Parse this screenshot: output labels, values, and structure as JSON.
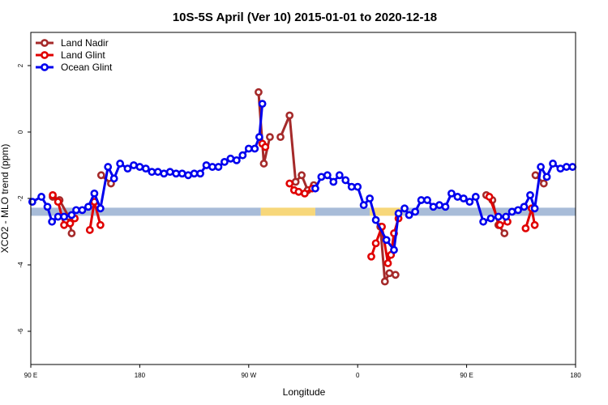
{
  "chart_data": {
    "type": "line",
    "title": "10S-5S April (Ver 10)   2015-01-01 to 2020-12-18",
    "xlabel": "Longitude",
    "ylabel": "XCO2 - MLO trend (ppm)",
    "xlim": [
      0,
      360
    ],
    "ylim": [
      -7,
      3
    ],
    "x_ticks": [
      {
        "x": 0,
        "label": "90 E"
      },
      {
        "x": 72,
        "label": "180"
      },
      {
        "x": 144,
        "label": "90 W"
      },
      {
        "x": 216,
        "label": "0"
      },
      {
        "x": 288,
        "label": "90 E"
      },
      {
        "x": 360,
        "label": "180"
      }
    ],
    "y_ticks": [
      {
        "y": 2,
        "label": "2"
      },
      {
        "y": 0,
        "label": "0"
      },
      {
        "y": -2,
        "label": "-2"
      },
      {
        "y": -4,
        "label": "-4"
      },
      {
        "y": -6,
        "label": "-6"
      }
    ],
    "legend_position": "top-left",
    "surface_band": {
      "y": -2.4,
      "segments": [
        {
          "type": "ocean",
          "x0": 0,
          "x1": 152,
          "color": "#a8bcd8"
        },
        {
          "type": "land",
          "x0": 152,
          "x1": 188,
          "color": "#f7d77a"
        },
        {
          "type": "ocean",
          "x0": 188,
          "x1": 224,
          "color": "#a8bcd8"
        },
        {
          "type": "land",
          "x0": 224,
          "x1": 246,
          "color": "#f7d77a"
        },
        {
          "type": "ocean",
          "x0": 246,
          "x1": 360,
          "color": "#a8bcd8"
        }
      ]
    },
    "series": [
      {
        "name": "Land Nadir",
        "color": "#a52a2a",
        "segments": [
          [
            [
              14.5,
              -1.95
            ],
            [
              19,
              -2.05
            ],
            [
              25,
              -2.55
            ],
            [
              27,
              -3.05
            ]
          ],
          [
            [
              46.5,
              -1.3
            ],
            [
              53,
              -1.55
            ]
          ],
          [
            [
              150.5,
              1.2
            ],
            [
              154,
              -0.95
            ],
            [
              158,
              -0.15
            ]
          ],
          [
            [
              165,
              -0.15
            ],
            [
              171,
              0.5
            ],
            [
              175,
              -1.5
            ],
            [
              179,
              -1.3
            ],
            [
              183,
              -1.75
            ],
            [
              187,
              -1.6
            ]
          ],
          [
            [
              231,
              -2.85
            ],
            [
              234,
              -4.5
            ],
            [
              237,
              -4.25
            ],
            [
              241,
              -4.3
            ]
          ],
          [
            [
              301,
              -1.9
            ],
            [
              305,
              -2.05
            ],
            [
              309,
              -2.8
            ],
            [
              313,
              -3.05
            ]
          ],
          [
            [
              333.5,
              -1.3
            ],
            [
              339,
              -1.55
            ]
          ]
        ]
      },
      {
        "name": "Land Glint",
        "color": "#e00000",
        "segments": [
          [
            [
              14.5,
              -1.9
            ],
            [
              18,
              -2.1
            ],
            [
              22,
              -2.8
            ],
            [
              26,
              -2.75
            ],
            [
              29,
              -2.6
            ]
          ],
          [
            [
              39,
              -2.95
            ],
            [
              42,
              -2.1
            ],
            [
              46,
              -2.8
            ]
          ],
          [
            [
              153,
              -0.35
            ],
            [
              155,
              -0.45
            ]
          ],
          [
            [
              171,
              -1.55
            ],
            [
              174,
              -1.75
            ],
            [
              177,
              -1.8
            ],
            [
              181,
              -1.85
            ],
            [
              186,
              -1.7
            ]
          ],
          [
            [
              225,
              -3.75
            ],
            [
              228,
              -3.35
            ],
            [
              232,
              -2.85
            ],
            [
              236,
              -3.95
            ],
            [
              238,
              -3.7
            ],
            [
              240,
              -3.05
            ],
            [
              243,
              -2.6
            ]
          ],
          [
            [
              303,
              -1.95
            ],
            [
              310,
              -2.8
            ],
            [
              315,
              -2.7
            ]
          ],
          [
            [
              327,
              -2.9
            ],
            [
              331,
              -2.3
            ],
            [
              333,
              -2.8
            ]
          ]
        ]
      },
      {
        "name": "Ocean Glint",
        "color": "#0000ee",
        "segments": [
          [
            [
              1,
              -2.1
            ],
            [
              7,
              -1.95
            ],
            [
              11,
              -2.25
            ],
            [
              14,
              -2.7
            ],
            [
              18,
              -2.55
            ],
            [
              22,
              -2.55
            ],
            [
              27,
              -2.5
            ],
            [
              30,
              -2.35
            ],
            [
              34,
              -2.35
            ],
            [
              38,
              -2.25
            ],
            [
              42,
              -1.85
            ],
            [
              46,
              -2.3
            ],
            [
              51,
              -1.05
            ],
            [
              55,
              -1.4
            ],
            [
              59,
              -0.95
            ],
            [
              64,
              -1.1
            ],
            [
              68,
              -1.0
            ],
            [
              72,
              -1.05
            ],
            [
              76,
              -1.1
            ],
            [
              80,
              -1.2
            ],
            [
              84,
              -1.2
            ],
            [
              88,
              -1.25
            ],
            [
              92,
              -1.2
            ],
            [
              96,
              -1.25
            ],
            [
              100,
              -1.25
            ],
            [
              104,
              -1.3
            ],
            [
              108,
              -1.25
            ],
            [
              112,
              -1.25
            ],
            [
              116,
              -1.0
            ],
            [
              120,
              -1.05
            ],
            [
              124,
              -1.05
            ],
            [
              128,
              -0.9
            ],
            [
              132,
              -0.8
            ],
            [
              136,
              -0.85
            ],
            [
              140,
              -0.7
            ],
            [
              144,
              -0.5
            ],
            [
              148,
              -0.5
            ],
            [
              151,
              -0.15
            ],
            [
              153,
              0.85
            ]
          ],
          [
            [
              188,
              -1.7
            ],
            [
              192,
              -1.35
            ],
            [
              196,
              -1.3
            ],
            [
              200,
              -1.5
            ],
            [
              204,
              -1.3
            ],
            [
              208,
              -1.45
            ],
            [
              212,
              -1.65
            ],
            [
              216,
              -1.65
            ],
            [
              220,
              -2.2
            ],
            [
              224,
              -2.0
            ],
            [
              228,
              -2.65
            ],
            [
              235,
              -3.25
            ],
            [
              240,
              -3.55
            ],
            [
              243,
              -2.45
            ],
            [
              247,
              -2.3
            ],
            [
              250,
              -2.5
            ],
            [
              254,
              -2.4
            ],
            [
              258,
              -2.05
            ],
            [
              262,
              -2.05
            ],
            [
              266,
              -2.25
            ],
            [
              270,
              -2.2
            ],
            [
              274,
              -2.25
            ],
            [
              278,
              -1.85
            ],
            [
              282,
              -1.95
            ],
            [
              286,
              -2.0
            ],
            [
              290,
              -2.1
            ],
            [
              294,
              -1.95
            ],
            [
              299,
              -2.7
            ],
            [
              304,
              -2.6
            ],
            [
              309,
              -2.55
            ],
            [
              314,
              -2.55
            ],
            [
              318,
              -2.4
            ],
            [
              322,
              -2.35
            ],
            [
              326,
              -2.25
            ],
            [
              330,
              -1.9
            ],
            [
              333,
              -2.3
            ],
            [
              337,
              -1.05
            ],
            [
              341,
              -1.35
            ],
            [
              345,
              -0.95
            ],
            [
              350,
              -1.1
            ],
            [
              354,
              -1.05
            ],
            [
              358,
              -1.05
            ]
          ]
        ]
      }
    ]
  }
}
